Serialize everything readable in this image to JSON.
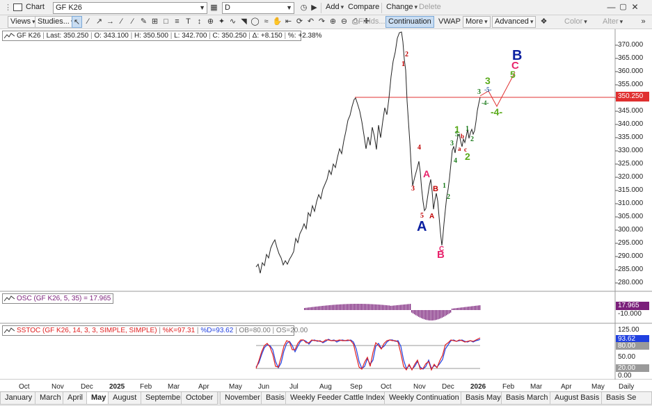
{
  "window": {
    "title": "Chart"
  },
  "toolbar1": {
    "symbol": "GF K26",
    "interval": "D",
    "add": "Add",
    "compare": "Compare",
    "change": "Change",
    "delete": "Delete"
  },
  "toolbar2": {
    "views": "Views",
    "studies": "Studies...",
    "fields": "Fields...",
    "continuation": "Continuation",
    "vwap": "VWAP",
    "more": "More",
    "advanced": "Advanced",
    "color": "Color",
    "alter": "Alter"
  },
  "quote": {
    "symbol": "GF K26",
    "last": "Last: 350.250",
    "open": "O: 343.100",
    "high": "H: 350.500",
    "low": "L: 342.700",
    "close": "C: 350.250",
    "change": "Δ: +8.150",
    "pct": "%: +2.38%"
  },
  "price_axis": {
    "labels": [
      "370.000",
      "365.000",
      "360.000",
      "355.000",
      "350.000",
      "345.000",
      "340.000",
      "335.000",
      "330.000",
      "325.000",
      "320.000",
      "315.000",
      "310.000",
      "305.000",
      "300.000",
      "295.000",
      "290.000",
      "285.000",
      "280.000"
    ],
    "last_label": "350.250"
  },
  "osc": {
    "label": "OSC (GF K26, 5, 35) = 17.965",
    "value_badge": "17.965",
    "axis_label": "-10.000"
  },
  "sstoc": {
    "label": "SSTOC (GF K26, 14, 3, 3, SIMPLE, SIMPLE)",
    "k": "%K=97.31",
    "d": "%D=93.62",
    "ob": "OB=80.00",
    "os": "OS=20.00",
    "axis": [
      "125.00",
      "93.62",
      "80.00",
      "50.00",
      "20.00",
      "0.00"
    ]
  },
  "time_axis": {
    "labels": [
      "Oct",
      "Nov",
      "Dec",
      "2025",
      "Feb",
      "Mar",
      "Apr",
      "May",
      "Jun",
      "Jul",
      "Aug",
      "Sep",
      "Oct",
      "Nov",
      "Dec",
      "2026",
      "Feb",
      "Mar",
      "Apr",
      "May"
    ],
    "period": "Daily"
  },
  "tabs": [
    "January",
    "March",
    "April",
    "May",
    "August",
    "September",
    "October",
    "November",
    "Basis",
    "Weekly Feeder Cattle Index",
    "Weekly Continuation",
    "Basis May",
    "Basis March",
    "August Basis",
    "Basis Se"
  ],
  "active_tab": "May",
  "waves": [
    {
      "t": "2",
      "c": "#c00000"
    },
    {
      "t": "1",
      "c": "#c00000"
    },
    {
      "t": "4",
      "c": "#c00000"
    },
    {
      "t": "3",
      "c": "#c00000"
    },
    {
      "t": "5",
      "c": "#c00000"
    },
    {
      "t": "A",
      "c": "#e8246c"
    },
    {
      "t": "B",
      "c": "#c00000"
    },
    {
      "t": "A",
      "c": "#c00000"
    },
    {
      "t": "A",
      "c": "#0a1fa0"
    },
    {
      "t": "C",
      "c": "#e8246c"
    },
    {
      "t": "B",
      "c": "#e8246c"
    },
    {
      "t": "1",
      "c": "#1a7a1a"
    },
    {
      "t": "2",
      "c": "#1a7a1a"
    },
    {
      "t": "3",
      "c": "#1a7a1a"
    },
    {
      "t": "4",
      "c": "#1a7a1a"
    },
    {
      "t": "a",
      "c": "#c00000"
    },
    {
      "t": "b",
      "c": "#c00000"
    },
    {
      "t": "c",
      "c": "#c00000"
    },
    {
      "t": "1",
      "c": "#5aaa1a"
    },
    {
      "t": "2",
      "c": "#5aaa1a"
    },
    {
      "t": "3",
      "c": "#1a7a1a"
    },
    {
      "t": "3",
      "c": "#5aaa1a"
    },
    {
      "t": "-5-",
      "c": "#1a4fa0"
    },
    {
      "t": "-4-",
      "c": "#1a7a1a"
    },
    {
      "t": "-4-",
      "c": "#5aaa1a"
    },
    {
      "t": "5",
      "c": "#5aaa1a"
    },
    {
      "t": "C",
      "c": "#e8246c"
    },
    {
      "t": "B",
      "c": "#0a1fa0"
    },
    {
      "t": "1",
      "c": "#1a7a1a"
    },
    {
      "t": "2",
      "c": "#1a7a1a"
    },
    {
      "t": "5",
      "c": "#1a7a1a"
    }
  ],
  "colors": {
    "price_line": "#222222",
    "last_line": "#e03030",
    "osc_bar": "#7a1f7a",
    "stoch_k": "#e02020",
    "stoch_d": "#2040e0",
    "accent": "#c9ddf2"
  }
}
